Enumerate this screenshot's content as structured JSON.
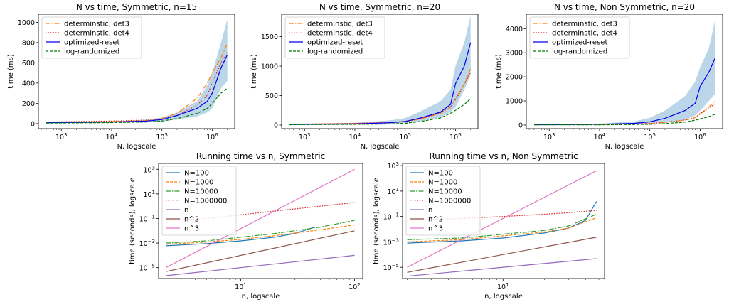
{
  "chart_data": [
    {
      "type": "line",
      "title": "N vs time, Symmetric, n=15",
      "xlabel": "N, logscale",
      "ylabel": "time (ms)",
      "xscale": "log",
      "xlim": [
        350,
        2800000
      ],
      "ylim": [
        -50,
        1080
      ],
      "xticks": [
        {
          "v": 1000,
          "b": "10",
          "e": "3"
        },
        {
          "v": 10000,
          "b": "10",
          "e": "4"
        },
        {
          "v": 100000,
          "b": "10",
          "e": "5"
        },
        {
          "v": 1000000,
          "b": "10",
          "e": "6"
        }
      ],
      "yticks": [
        0,
        200,
        400,
        600,
        800,
        1000
      ],
      "legend_position": "upper-left",
      "band": {
        "series": 2,
        "x": [
          500,
          10000,
          50000,
          100000,
          200000,
          500000,
          800000,
          1000000,
          1500000,
          2000000
        ],
        "lower": [
          4,
          8,
          14,
          20,
          40,
          70,
          110,
          150,
          350,
          420
        ],
        "upper": [
          12,
          20,
          40,
          60,
          110,
          220,
          380,
          500,
          800,
          1030
        ]
      },
      "series": [
        {
          "name": "determinstic, det3",
          "color": "#ff7f0e",
          "dash": "7,2,1.5,2",
          "x": [
            500,
            10000,
            50000,
            100000,
            200000,
            500000,
            800000,
            1000000,
            1500000,
            2000000
          ],
          "values": [
            10,
            20,
            30,
            50,
            100,
            250,
            400,
            500,
            650,
            790
          ]
        },
        {
          "name": "determinstic, det4",
          "color": "#d62728",
          "dash": "1.5,2",
          "x": [
            500,
            10000,
            50000,
            100000,
            200000,
            500000,
            800000,
            1000000,
            1500000,
            2000000
          ],
          "values": [
            15,
            25,
            35,
            45,
            80,
            180,
            280,
            400,
            600,
            710
          ]
        },
        {
          "name": "optimized-reset",
          "color": "#0000ee",
          "dash": "",
          "x": [
            500,
            10000,
            50000,
            100000,
            200000,
            500000,
            800000,
            1000000,
            1500000,
            2000000
          ],
          "values": [
            8,
            15,
            25,
            40,
            80,
            150,
            220,
            300,
            550,
            680
          ]
        },
        {
          "name": "log-randomized",
          "color": "#007a00",
          "dash": "4,2",
          "x": [
            500,
            10000,
            50000,
            100000,
            200000,
            500000,
            800000,
            1000000,
            1500000,
            2000000
          ],
          "values": [
            5,
            10,
            15,
            25,
            50,
            100,
            150,
            200,
            300,
            350
          ]
        }
      ]
    },
    {
      "type": "line",
      "title": "N vs time, Symmetric, n=20",
      "xlabel": "N, logscale",
      "ylabel": "time (ms)",
      "xscale": "log",
      "xlim": [
        350,
        2800000
      ],
      "ylim": [
        -60,
        1880
      ],
      "xticks": [
        {
          "v": 1000,
          "b": "10",
          "e": "3"
        },
        {
          "v": 10000,
          "b": "10",
          "e": "4"
        },
        {
          "v": 100000,
          "b": "10",
          "e": "5"
        },
        {
          "v": 1000000,
          "b": "10",
          "e": "6"
        }
      ],
      "yticks": [
        0,
        500,
        1000,
        1500
      ],
      "legend_position": "upper-left",
      "band": {
        "series": 2,
        "x": [
          500,
          10000,
          50000,
          100000,
          200000,
          500000,
          800000,
          1000000,
          1500000,
          2000000
        ],
        "lower": [
          5,
          10,
          20,
          35,
          70,
          130,
          220,
          300,
          600,
          850
        ]
      },
      "series": [
        {
          "name": "determinstic, det3",
          "color": "#ff7f0e",
          "dash": "7,2,1.5,2",
          "x": [
            500,
            10000,
            50000,
            100000,
            200000,
            500000,
            800000,
            1000000,
            1500000,
            2000000
          ],
          "values": [
            12,
            25,
            40,
            60,
            100,
            200,
            300,
            450,
            700,
            950
          ]
        },
        {
          "name": "determinstic, det4",
          "color": "#d62728",
          "dash": "1.5,2",
          "x": [
            500,
            10000,
            50000,
            100000,
            200000,
            500000,
            800000,
            1000000,
            1500000,
            2000000
          ],
          "values": [
            15,
            28,
            45,
            65,
            110,
            210,
            310,
            430,
            680,
            900
          ]
        },
        {
          "name": "optimized-reset",
          "color": "#0000ee",
          "dash": "",
          "x": [
            500,
            10000,
            50000,
            100000,
            200000,
            500000,
            800000,
            1000000,
            1500000,
            2000000
          ],
          "values": [
            10,
            20,
            40,
            60,
            120,
            220,
            350,
            700,
            1000,
            1400
          ]
        },
        {
          "name": "log-randomized",
          "color": "#007a00",
          "dash": "4,2",
          "x": [
            500,
            10000,
            50000,
            100000,
            200000,
            500000,
            800000,
            1000000,
            1500000,
            2000000
          ],
          "values": [
            6,
            12,
            20,
            30,
            60,
            120,
            200,
            250,
            350,
            450
          ]
        }
      ],
      "band_upper": [
        20,
        40,
        80,
        120,
        230,
        400,
        600,
        1000,
        1400,
        1850
      ]
    },
    {
      "type": "line",
      "title": "N vs time, Non Symmetric, n=20",
      "xlabel": "N, logscale",
      "ylabel": "time (ms)",
      "xscale": "log",
      "xlim": [
        350,
        2800000
      ],
      "ylim": [
        -150,
        4600
      ],
      "xticks": [
        {
          "v": 1000,
          "b": "10",
          "e": "3"
        },
        {
          "v": 10000,
          "b": "10",
          "e": "4"
        },
        {
          "v": 100000,
          "b": "10",
          "e": "5"
        },
        {
          "v": 1000000,
          "b": "10",
          "e": "6"
        }
      ],
      "yticks": [
        0,
        1000,
        2000,
        3000,
        4000
      ],
      "legend_position": "upper-left",
      "band": {
        "series": 2,
        "x": [
          500,
          10000,
          50000,
          100000,
          200000,
          500000,
          800000,
          1000000,
          1500000,
          2000000
        ],
        "lower": [
          5,
          15,
          30,
          60,
          100,
          200,
          400,
          600,
          1000,
          1300
        ],
        "upper": [
          30,
          60,
          150,
          300,
          600,
          1200,
          1800,
          2400,
          3200,
          4400
        ]
      },
      "series": [
        {
          "name": "determinstic, det3",
          "color": "#ff7f0e",
          "dash": "7,2,1.5,2",
          "x": [
            500,
            10000,
            50000,
            100000,
            200000,
            500000,
            800000,
            1000000,
            1500000,
            2000000
          ],
          "values": [
            10,
            20,
            40,
            60,
            110,
            200,
            300,
            450,
            750,
            1000
          ]
        },
        {
          "name": "determinstic, det4",
          "color": "#d62728",
          "dash": "1.5,2",
          "x": [
            500,
            10000,
            50000,
            100000,
            200000,
            500000,
            800000,
            1000000,
            1500000,
            2000000
          ],
          "values": [
            12,
            22,
            45,
            65,
            115,
            210,
            320,
            480,
            700,
            900
          ]
        },
        {
          "name": "optimized-reset",
          "color": "#0000ee",
          "dash": "",
          "x": [
            500,
            10000,
            50000,
            100000,
            200000,
            500000,
            800000,
            1000000,
            1500000,
            2000000
          ],
          "values": [
            15,
            30,
            70,
            130,
            280,
            600,
            900,
            1600,
            2200,
            2800
          ]
        },
        {
          "name": "log-randomized",
          "color": "#007a00",
          "dash": "4,2",
          "x": [
            500,
            10000,
            50000,
            100000,
            200000,
            500000,
            800000,
            1000000,
            1500000,
            2000000
          ],
          "values": [
            5,
            10,
            20,
            30,
            60,
            120,
            200,
            250,
            350,
            450
          ]
        }
      ]
    },
    {
      "type": "line",
      "title": "Running time vs n, Symmetric",
      "xlabel": "n, logscale",
      "ylabel": "time (seconds), logscale",
      "xscale": "log",
      "yscale": "log",
      "xlim": [
        1.9,
        118
      ],
      "ylim": [
        1.3e-06,
        3000
      ],
      "xticks": [
        {
          "v": 10,
          "b": "10",
          "e": "1"
        },
        {
          "v": 100,
          "b": "10",
          "e": "2"
        }
      ],
      "yticks": [
        {
          "v": 1e-05,
          "b": "10",
          "e": "−5"
        },
        {
          "v": 0.001,
          "b": "10",
          "e": "−3"
        },
        {
          "v": 0.1,
          "b": "10",
          "e": "−1"
        },
        {
          "v": 10,
          "b": "10",
          "e": "1"
        },
        {
          "v": 1000,
          "b": "10",
          "e": "3"
        }
      ],
      "legend_position": "upper-left",
      "series": [
        {
          "name": "N=100",
          "color": "#1f77b4",
          "dash": "",
          "x": [
            2.2,
            5,
            10,
            20,
            30,
            45
          ],
          "values": [
            0.0006,
            0.0009,
            0.0015,
            0.003,
            0.006,
            0.02
          ]
        },
        {
          "name": "N=1000",
          "color": "#ff7f0e",
          "dash": "4,2",
          "x": [
            2.2,
            5,
            10,
            20,
            50,
            100
          ],
          "values": [
            0.0008,
            0.0012,
            0.002,
            0.004,
            0.012,
            0.03
          ]
        },
        {
          "name": "N=10000",
          "color": "#2ca02c",
          "dash": "7,2,1.5,2",
          "x": [
            2.2,
            5,
            10,
            20,
            50,
            100
          ],
          "values": [
            0.001,
            0.0015,
            0.003,
            0.006,
            0.02,
            0.07
          ]
        },
        {
          "name": "N=1000000",
          "color": "#d62728",
          "dash": "1.5,2",
          "x": [
            2.2,
            5,
            10,
            20,
            50,
            100
          ],
          "values": [
            0.07,
            0.1,
            0.2,
            0.4,
            1,
            2
          ]
        },
        {
          "name": "n",
          "color": "#9467bd",
          "dash": "",
          "x": [
            2.2,
            100
          ],
          "values": [
            2.2e-06,
            0.0001
          ]
        },
        {
          "name": "n^2",
          "color": "#8c564b",
          "dash": "",
          "x": [
            2.2,
            100
          ],
          "values": [
            4.8e-06,
            0.01
          ]
        },
        {
          "name": "n^3",
          "color": "#e377c2",
          "dash": "",
          "x": [
            2.2,
            100
          ],
          "values": [
            1e-05,
            1000
          ]
        }
      ]
    },
    {
      "type": "line",
      "title": "Running time vs n, Non Symmetric",
      "xlabel": "n, logscale",
      "ylabel": "time (seconds), logscale",
      "xscale": "log",
      "yscale": "log",
      "xlim": [
        1.85,
        55
      ],
      "ylim": [
        1.3e-06,
        1500
      ],
      "xticks": [
        {
          "v": 10,
          "b": "10",
          "e": "1"
        }
      ],
      "yticks": [
        {
          "v": 1e-05,
          "b": "10",
          "e": "−5"
        },
        {
          "v": 0.001,
          "b": "10",
          "e": "−3"
        },
        {
          "v": 0.1,
          "b": "10",
          "e": "−1"
        },
        {
          "v": 10,
          "b": "10",
          "e": "1"
        },
        {
          "v": 1000,
          "b": "10",
          "e": "3"
        }
      ],
      "legend_position": "upper-left",
      "series": [
        {
          "name": "N=100",
          "color": "#1f77b4",
          "dash": "",
          "x": [
            2,
            5,
            10,
            20,
            30,
            40,
            48
          ],
          "values": [
            0.0008,
            0.0012,
            0.002,
            0.005,
            0.012,
            0.05,
            1.5
          ]
        },
        {
          "name": "N=1000",
          "color": "#ff7f0e",
          "dash": "4,2",
          "x": [
            2,
            5,
            10,
            20,
            30,
            48
          ],
          "values": [
            0.001,
            0.0015,
            0.003,
            0.006,
            0.012,
            0.08
          ]
        },
        {
          "name": "N=10000",
          "color": "#2ca02c",
          "dash": "7,2,1.5,2",
          "x": [
            2,
            5,
            10,
            20,
            30,
            48
          ],
          "values": [
            0.0015,
            0.002,
            0.004,
            0.008,
            0.018,
            0.15
          ]
        },
        {
          "name": "N=1000000",
          "color": "#d62728",
          "dash": "1.5,2",
          "x": [
            2,
            5,
            10,
            20,
            30,
            48
          ],
          "values": [
            0.05,
            0.07,
            0.1,
            0.15,
            0.2,
            0.3
          ]
        },
        {
          "name": "n",
          "color": "#9467bd",
          "dash": "",
          "x": [
            2,
            48
          ],
          "values": [
            2e-06,
            4.8e-05
          ]
        },
        {
          "name": "n^2",
          "color": "#8c564b",
          "dash": "",
          "x": [
            2,
            48
          ],
          "values": [
            4e-06,
            0.0023
          ]
        },
        {
          "name": "n^3",
          "color": "#e377c2",
          "dash": "",
          "x": [
            2,
            48
          ],
          "values": [
            1e-05,
            400
          ]
        }
      ]
    }
  ]
}
